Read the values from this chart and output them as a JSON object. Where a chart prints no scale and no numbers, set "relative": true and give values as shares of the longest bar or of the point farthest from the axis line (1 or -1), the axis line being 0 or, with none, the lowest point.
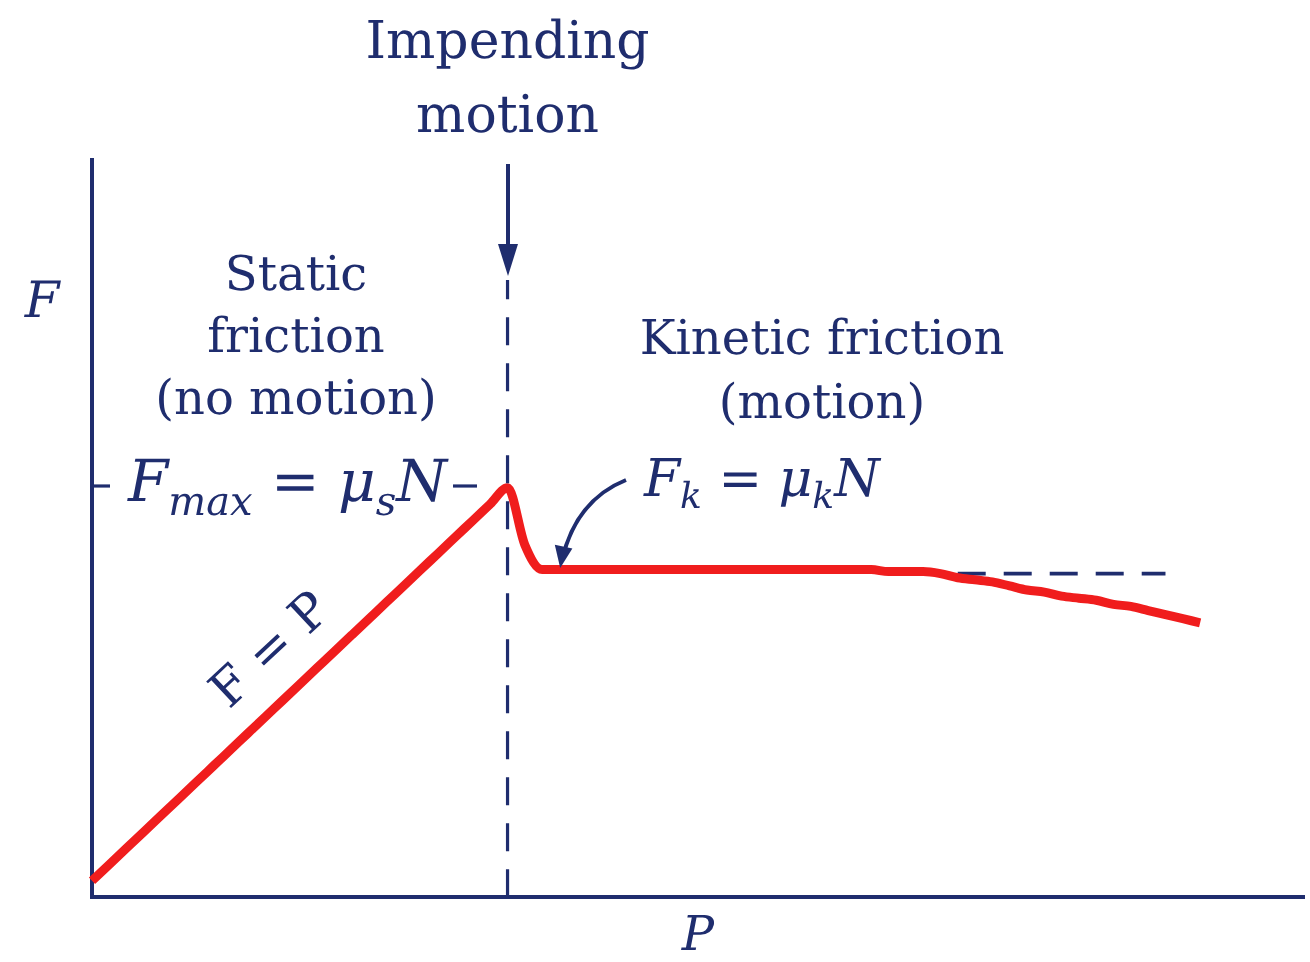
{
  "chart_data": {
    "type": "line",
    "xlabel": "P",
    "ylabel": "F",
    "relative": true,
    "categories": [
      null,
      null,
      null,
      null,
      null,
      null,
      null,
      null,
      null,
      null,
      null,
      null,
      null,
      null,
      null,
      null,
      null,
      null,
      null,
      null,
      null,
      null,
      null,
      null,
      null,
      null,
      null,
      null,
      null,
      null,
      null,
      null,
      null,
      null,
      null,
      null,
      null,
      null,
      null,
      null,
      null,
      null,
      null,
      null,
      null,
      null,
      null,
      null,
      null,
      null,
      null,
      null,
      null,
      null,
      null,
      null,
      null,
      null,
      null,
      null,
      null,
      null,
      null,
      null,
      null,
      null,
      null,
      null,
      null,
      null,
      null
    ],
    "series": [
      {
        "color": "#f01d1d",
        "values": [
          0.04,
          0.08,
          0.12,
          0.16,
          0.2,
          0.24,
          0.28,
          0.32,
          0.36,
          0.4,
          0.44,
          0.48,
          0.52,
          0.56,
          0.6,
          0.64,
          0.68,
          0.72,
          0.76,
          0.8,
          0.84,
          0.88,
          0.92,
          0.96,
          1,
          0.86,
          0.8,
          0.8,
          0.8,
          0.8,
          0.8,
          0.8,
          0.8,
          0.8,
          0.8,
          0.8,
          0.8,
          0.8,
          0.8,
          0.8,
          0.8,
          0.8,
          0.8,
          0.8,
          0.8,
          0.8,
          0.795,
          0.795,
          0.795,
          0.79,
          0.78,
          0.775,
          0.77,
          0.76,
          0.75,
          0.745,
          0.735,
          0.73,
          0.725,
          0.715,
          0.71,
          0.7,
          0.69,
          0.68,
          0.67,
          null,
          null,
          null,
          null,
          null,
          null
        ]
      },
      {
        "color": "#1f2d6e",
        "line_style": "dashed",
        "values": [
          null,
          null,
          null,
          null,
          null,
          null,
          null,
          null,
          null,
          null,
          null,
          null,
          null,
          null,
          null,
          null,
          null,
          null,
          null,
          null,
          null,
          null,
          null,
          null,
          null,
          null,
          null,
          null,
          null,
          null,
          null,
          null,
          null,
          null,
          null,
          null,
          null,
          null,
          null,
          null,
          null,
          null,
          null,
          null,
          null,
          null,
          null,
          null,
          null,
          null,
          0.79,
          0.79,
          0.79,
          0.79,
          0.79,
          0.79,
          0.79,
          0.79,
          0.79,
          0.79,
          0.79,
          0.79,
          0.79,
          null,
          null,
          null,
          null,
          null,
          null,
          null,
          null
        ]
      }
    ],
    "ref_lines": [
      {
        "axis": "x",
        "label": "Impending\nmotion",
        "line_style": "dashed",
        "color": "#1f2d6e"
      }
    ],
    "annotations": [
      "Static\nfriction\n(no motion)",
      "Kinetic friction\n(motion)",
      "F = P",
      "F$_{k}$ = μ$_{k}$N",
      "F$_{max}$ = μ$_{s}$N"
    ],
    "marker": "none",
    "grid": false,
    "legend": false
  }
}
